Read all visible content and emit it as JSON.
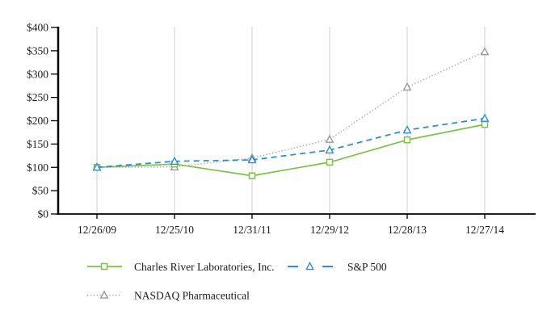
{
  "chart_data": {
    "type": "line",
    "title": "",
    "x_labels": [
      "12/26/09",
      "12/25/10",
      "12/31/11",
      "12/29/12",
      "12/28/13",
      "12/27/14"
    ],
    "ylim": [
      0,
      400
    ],
    "y_tick_step": 50,
    "y_tick_labels": [
      "$0",
      "$50",
      "$100",
      "$150",
      "$200",
      "$250",
      "$300",
      "$350",
      "$400"
    ],
    "grid": "vertical-only",
    "legend_position": "bottom-left",
    "series": [
      {
        "name": "Charles River Laboratories, Inc.",
        "color": "#7cc143",
        "line_style": "solid",
        "marker": "square",
        "values": [
          100,
          107,
          82,
          111,
          159,
          192
        ]
      },
      {
        "name": "S&P 500",
        "color": "#2e8ed4",
        "line_style": "dashed",
        "marker": "triangle",
        "values": [
          100,
          113,
          116,
          137,
          180,
          205
        ]
      },
      {
        "name": "NASDAQ Pharmaceutical",
        "color": "#999999",
        "line_style": "dotted",
        "marker": "triangle",
        "values": [
          100,
          101,
          120,
          160,
          272,
          348
        ]
      }
    ]
  },
  "colors": {
    "background": "#ffffff",
    "axis": "#000000",
    "gridline": "#cccccc",
    "text": "#1a1a1a"
  }
}
